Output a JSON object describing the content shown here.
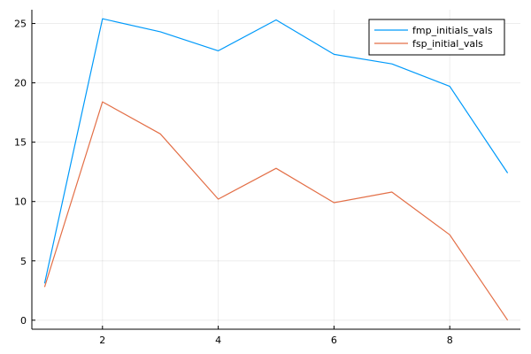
{
  "chart_data": {
    "type": "line",
    "x": [
      1,
      2,
      3,
      4,
      5,
      6,
      7,
      8,
      9
    ],
    "series": [
      {
        "name": "fmp_initials_vals",
        "color": "#009AFA",
        "values": [
          3.1,
          25.4,
          24.3,
          22.7,
          25.3,
          22.4,
          21.6,
          19.7,
          12.4
        ]
      },
      {
        "name": "fsp_initial_vals",
        "color": "#E36F47",
        "values": [
          2.8,
          18.4,
          15.7,
          10.2,
          12.8,
          9.9,
          10.8,
          7.2,
          0.0
        ]
      }
    ],
    "xlim": [
      0.78,
      9.22
    ],
    "ylim": [
      -0.76,
      26.16
    ],
    "xticks": [
      2,
      4,
      6,
      8
    ],
    "yticks": [
      0,
      5,
      10,
      15,
      20,
      25
    ],
    "xtick_labels": [
      "2",
      "4",
      "6",
      "8"
    ],
    "ytick_labels": [
      "0",
      "5",
      "10",
      "15",
      "20",
      "25"
    ],
    "grid": true,
    "legend_position": "top-right"
  }
}
